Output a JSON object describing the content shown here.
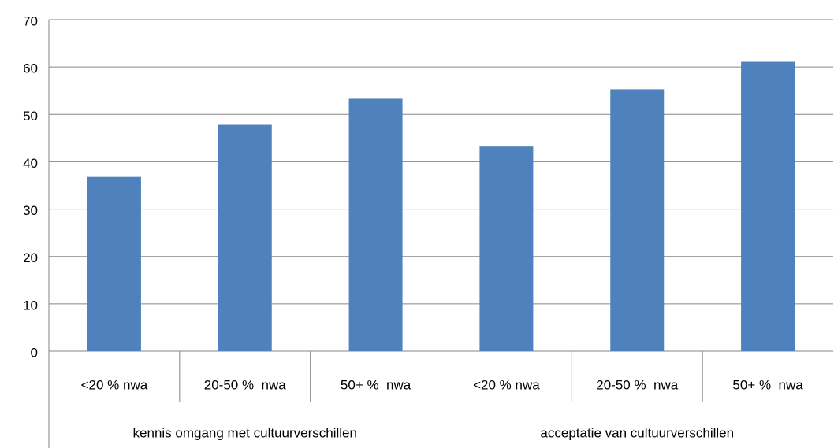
{
  "chart_data": {
    "type": "bar",
    "categories": [
      "<20 % nwa",
      "20-50 %  nwa",
      "50+ %  nwa",
      "<20 % nwa",
      "20-50 %  nwa",
      "50+ %  nwa"
    ],
    "groups": [
      "kennis omgang met cultuurverschillen",
      "acceptatie van cultuurverschillen"
    ],
    "values": [
      36.8,
      47.8,
      53.3,
      43.2,
      55.3,
      61.1
    ],
    "color": "#4f81bd",
    "ylim": [
      0,
      70
    ],
    "yticks": [
      0,
      10,
      20,
      30,
      40,
      50,
      60,
      70
    ],
    "grid": true
  }
}
